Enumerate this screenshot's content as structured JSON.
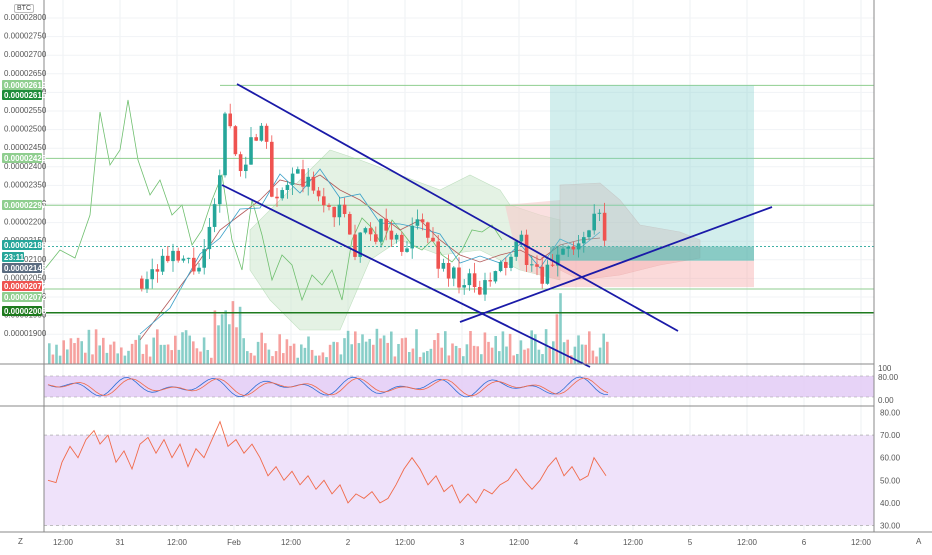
{
  "colors": {
    "up": "#26a69a",
    "down": "#ef5350",
    "trend": "#1a1aa8",
    "level": "#7fbf7f",
    "level_dark": "#1e7a1e",
    "osc_band": "#e1c8f5",
    "rsi_line": "#f06a4a"
  },
  "symbol": {
    "currency": "BTC"
  },
  "price_axis": [
    "0.00002800",
    "0.00002750",
    "0.00002700",
    "0.00002650",
    "0.00002600",
    "0.00002550",
    "0.00002500",
    "0.00002450",
    "0.00002400",
    "0.00002350",
    "0.00002250",
    "0.00002200",
    "0.00002150",
    "0.00002100",
    "0.00002050",
    "0.00002000",
    "0.00001950",
    "0.00001900"
  ],
  "price_tags": [
    {
      "text": "0.00002619",
      "color": "#8fce8f"
    },
    {
      "text": "0.00002615",
      "color": "#1e8c3a"
    },
    {
      "text": "0.00002423",
      "color": "#8fce8f"
    },
    {
      "text": "0.00002297",
      "color": "#8fce8f"
    },
    {
      "text": "0.00002186",
      "color": "#26a69a"
    },
    {
      "text": "23:11",
      "color": "#26a69a"
    },
    {
      "text": "0.00002148",
      "color": "#5b6c80"
    },
    {
      "text": "0.00002077",
      "color": "#ef5350"
    },
    {
      "text": "0.00002072",
      "color": "#8fce8f"
    },
    {
      "text": "0.00002008",
      "color": "#1e7a1e"
    }
  ],
  "stoch_axis": [
    "100",
    "80.00",
    "0.00"
  ],
  "rsi_axis": [
    "80.00",
    "70.00",
    "60.00",
    "50.00",
    "40.00",
    "30.00"
  ],
  "time_axis": [
    "12:00",
    "31",
    "12:00",
    "Feb",
    "12:00",
    "2",
    "12:00",
    "3",
    "12:00",
    "4",
    "12:00",
    "5",
    "12:00",
    "6",
    "12:00"
  ],
  "footer": {
    "left_btn": "Z",
    "right_btn": "A"
  }
}
